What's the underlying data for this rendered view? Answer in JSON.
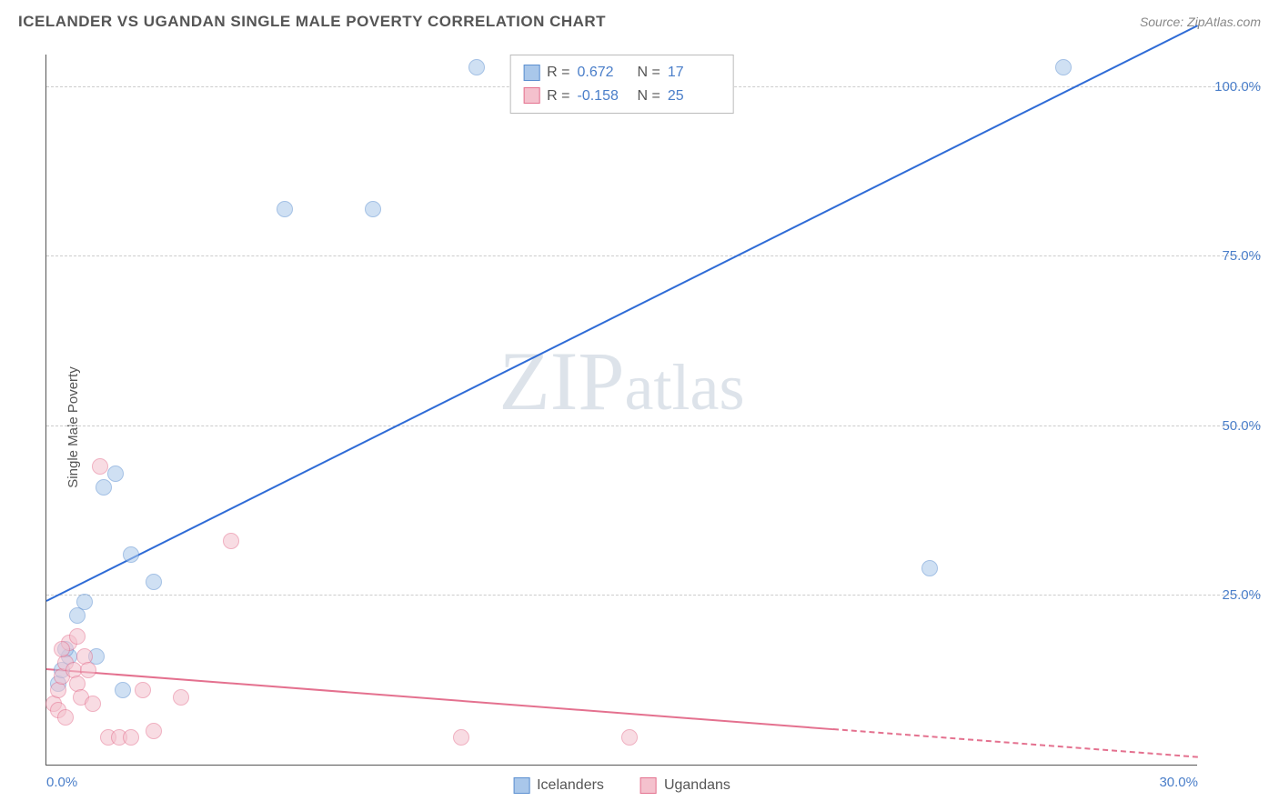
{
  "title": "ICELANDER VS UGANDAN SINGLE MALE POVERTY CORRELATION CHART",
  "source_label": "Source: ZipAtlas.com",
  "ylabel": "Single Male Poverty",
  "watermark": {
    "z": "Z",
    "i": "I",
    "p": "P",
    "rest": "atlas"
  },
  "chart": {
    "type": "scatter",
    "background_color": "#ffffff",
    "grid_color": "#cccccc",
    "axis_color": "#555555",
    "tick_color": "#4a7ec9",
    "tick_fontsize": 15,
    "label_fontsize": 15,
    "xlim": [
      0,
      30
    ],
    "ylim": [
      0,
      105
    ],
    "xticks": [
      {
        "v": 0,
        "label": "0.0%"
      },
      {
        "v": 30,
        "label": "30.0%"
      }
    ],
    "yticks": [
      {
        "v": 25,
        "label": "25.0%"
      },
      {
        "v": 50,
        "label": "50.0%"
      },
      {
        "v": 75,
        "label": "75.0%"
      },
      {
        "v": 100,
        "label": "100.0%"
      }
    ],
    "point_radius": 9,
    "point_opacity": 0.55,
    "series": [
      {
        "name": "Icelanders",
        "fill": "#a9c7ea",
        "stroke": "#5b8fd0",
        "points": [
          {
            "x": 0.3,
            "y": 12
          },
          {
            "x": 0.4,
            "y": 14
          },
          {
            "x": 0.6,
            "y": 16
          },
          {
            "x": 0.8,
            "y": 22
          },
          {
            "x": 1.0,
            "y": 24
          },
          {
            "x": 1.3,
            "y": 16
          },
          {
            "x": 1.5,
            "y": 41
          },
          {
            "x": 1.8,
            "y": 43
          },
          {
            "x": 2.2,
            "y": 31
          },
          {
            "x": 2.8,
            "y": 27
          },
          {
            "x": 2.0,
            "y": 11
          },
          {
            "x": 6.2,
            "y": 82
          },
          {
            "x": 8.5,
            "y": 82
          },
          {
            "x": 11.2,
            "y": 103
          },
          {
            "x": 23.0,
            "y": 29
          },
          {
            "x": 26.5,
            "y": 103
          },
          {
            "x": 0.5,
            "y": 17
          }
        ],
        "trend": {
          "color": "#2e6bd6",
          "width": 2,
          "y_at_xmin": 24,
          "y_at_xmax": 109,
          "dash_from_x": null
        },
        "r_value": "0.672",
        "n_value": "17"
      },
      {
        "name": "Ugandans",
        "fill": "#f4c1cd",
        "stroke": "#e4718f",
        "points": [
          {
            "x": 0.2,
            "y": 9
          },
          {
            "x": 0.3,
            "y": 11
          },
          {
            "x": 0.4,
            "y": 13
          },
          {
            "x": 0.5,
            "y": 15
          },
          {
            "x": 0.6,
            "y": 18
          },
          {
            "x": 0.7,
            "y": 14
          },
          {
            "x": 0.8,
            "y": 12
          },
          {
            "x": 0.9,
            "y": 10
          },
          {
            "x": 1.0,
            "y": 16
          },
          {
            "x": 1.1,
            "y": 14
          },
          {
            "x": 1.2,
            "y": 9
          },
          {
            "x": 1.4,
            "y": 44
          },
          {
            "x": 1.6,
            "y": 4
          },
          {
            "x": 1.9,
            "y": 4
          },
          {
            "x": 2.2,
            "y": 4
          },
          {
            "x": 2.5,
            "y": 11
          },
          {
            "x": 2.8,
            "y": 5
          },
          {
            "x": 3.5,
            "y": 10
          },
          {
            "x": 4.8,
            "y": 33
          },
          {
            "x": 10.8,
            "y": 4
          },
          {
            "x": 15.2,
            "y": 4
          },
          {
            "x": 0.3,
            "y": 8
          },
          {
            "x": 0.5,
            "y": 7
          },
          {
            "x": 0.8,
            "y": 19
          },
          {
            "x": 0.4,
            "y": 17
          }
        ],
        "trend": {
          "color": "#e4718f",
          "width": 2,
          "y_at_xmin": 14,
          "y_at_xmax": 1,
          "dash_from_x": 20.5
        },
        "r_value": "-0.158",
        "n_value": "25"
      }
    ],
    "legend_top": {
      "r_label": "R  =",
      "n_label": "N  ="
    },
    "legend_bottom": {
      "items": [
        "Icelanders",
        "Ugandans"
      ]
    }
  }
}
